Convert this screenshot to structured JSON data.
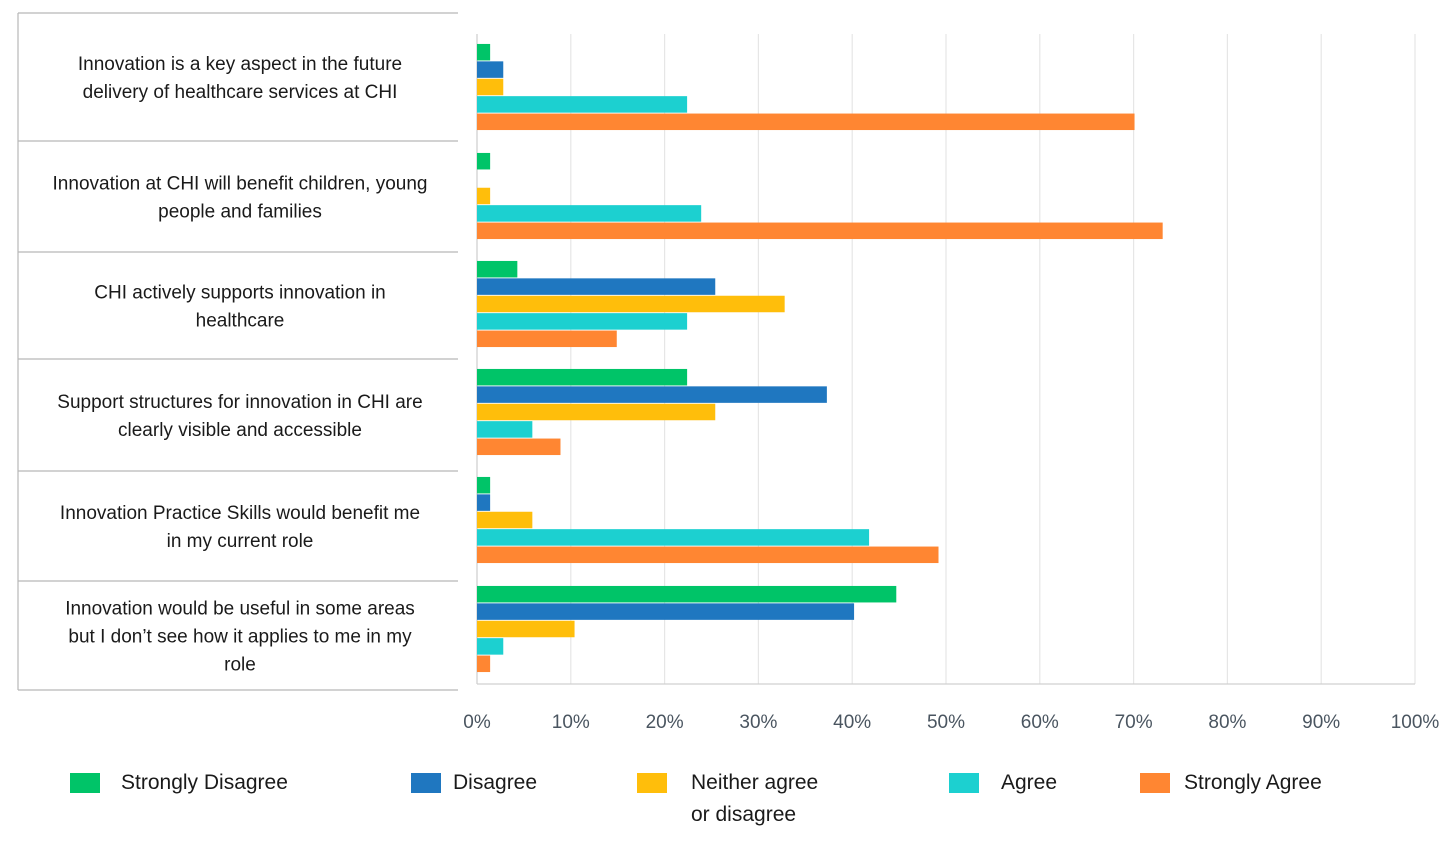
{
  "chart_data": {
    "type": "bar",
    "orientation": "horizontal",
    "categories": [
      "Innovation is a key aspect in the future delivery of healthcare services at CHI",
      "Innovation at CHI will benefit children, young people and families",
      "CHI actively supports innovation in healthcare",
      "Support structures for innovation in CHI are clearly visible and accessible",
      "Innovation Practice Skills would benefit me in my current role",
      "Innovation would be useful in some areas but I don’t see how it applies to me in my role"
    ],
    "category_lines": [
      [
        "Innovation is a key aspect in the future",
        "delivery of healthcare services at CHI"
      ],
      [
        "Innovation at CHI will benefit children, young",
        "people and families"
      ],
      [
        "CHI actively supports innovation in",
        "healthcare"
      ],
      [
        "Support structures for innovation in CHI are",
        "clearly visible and accessible"
      ],
      [
        "Innovation Practice Skills would benefit me",
        "in my current role"
      ],
      [
        "Innovation would be useful in some areas",
        "but I don’t see how it applies to me in my",
        "role"
      ]
    ],
    "series": [
      {
        "name": "Strongly Disagree",
        "color": "#00c468",
        "values": [
          1.4,
          1.4,
          4.3,
          22.4,
          1.4,
          44.7
        ]
      },
      {
        "name": "Disagree",
        "color": "#1f77c0",
        "values": [
          2.8,
          0,
          25.4,
          37.3,
          1.4,
          40.2
        ]
      },
      {
        "name": "Neither agree or disagree",
        "color": "#ffbe0b",
        "values": [
          2.8,
          1.4,
          32.8,
          25.4,
          5.9,
          10.4
        ]
      },
      {
        "name": "Agree",
        "color": "#1cd0d0",
        "values": [
          22.4,
          23.9,
          22.4,
          5.9,
          41.8,
          2.8
        ]
      },
      {
        "name": "Strongly Agree",
        "color": "#ff8632",
        "values": [
          70.1,
          73.1,
          14.9,
          8.9,
          49.2,
          1.4
        ]
      }
    ],
    "legend_lines": [
      [
        "Strongly Disagree"
      ],
      [
        "Disagree"
      ],
      [
        "Neither agree",
        "or disagree"
      ],
      [
        "Agree"
      ],
      [
        "Strongly Agree"
      ]
    ],
    "xlim": [
      0,
      100
    ],
    "x_ticks": [
      "0%",
      "10%",
      "20%",
      "30%",
      "40%",
      "50%",
      "60%",
      "70%",
      "80%",
      "90%",
      "100%"
    ],
    "title": "",
    "xlabel": "",
    "ylabel": "",
    "grid": true,
    "legend_position": "bottom"
  }
}
